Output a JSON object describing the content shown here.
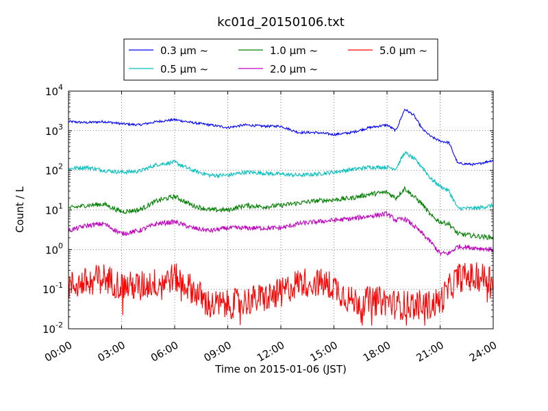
{
  "chart_data": {
    "type": "line",
    "title": "kc01d_20150106.txt",
    "xlabel": "Time on 2015-01-06 (JST)",
    "ylabel": "Count / L",
    "xlim": [
      "00:00",
      "24:00"
    ],
    "ylim": [
      0.01,
      10000
    ],
    "yscale": "log",
    "grid": true,
    "legend_position": "top-center",
    "x_ticks": [
      "00:00",
      "03:00",
      "06:00",
      "09:00",
      "12:00",
      "15:00",
      "18:00",
      "21:00",
      "24:00"
    ],
    "y_ticks": [
      {
        "base": "10",
        "exp": "-2",
        "value": 0.01
      },
      {
        "base": "10",
        "exp": "-1",
        "value": 0.1
      },
      {
        "base": "10",
        "exp": "0",
        "value": 1
      },
      {
        "base": "10",
        "exp": "1",
        "value": 10
      },
      {
        "base": "10",
        "exp": "2",
        "value": 100
      },
      {
        "base": "10",
        "exp": "3",
        "value": 1000
      },
      {
        "base": "10",
        "exp": "4",
        "value": 10000
      }
    ],
    "x": [
      "00:00",
      "01:00",
      "02:00",
      "03:00",
      "04:00",
      "05:00",
      "06:00",
      "07:00",
      "08:00",
      "09:00",
      "10:00",
      "11:00",
      "12:00",
      "13:00",
      "14:00",
      "15:00",
      "16:00",
      "17:00",
      "18:00",
      "18:30",
      "19:00",
      "19:30",
      "20:00",
      "20:30",
      "21:00",
      "21:30",
      "22:00",
      "23:00",
      "24:00"
    ],
    "series": [
      {
        "name": "0.3 μm ~",
        "color": "#0000ff",
        "noise": 0.03,
        "values": [
          1700,
          1600,
          1700,
          1500,
          1400,
          1700,
          1900,
          1600,
          1400,
          1200,
          1400,
          1300,
          1300,
          900,
          900,
          800,
          900,
          1200,
          1400,
          1000,
          3500,
          2500,
          1100,
          700,
          550,
          500,
          150,
          140,
          180
        ]
      },
      {
        "name": "0.5 μm ~",
        "color": "#00bfbf",
        "noise": 0.05,
        "values": [
          110,
          120,
          100,
          90,
          95,
          140,
          160,
          100,
          75,
          75,
          90,
          85,
          80,
          75,
          80,
          90,
          105,
          120,
          120,
          110,
          280,
          200,
          120,
          60,
          40,
          30,
          11,
          11,
          13
        ]
      },
      {
        "name": "1.0 μm ~",
        "color": "#008000",
        "noise": 0.06,
        "values": [
          11,
          13,
          14,
          9,
          10,
          17,
          22,
          13,
          10,
          10,
          13,
          12,
          13,
          15,
          17,
          18,
          20,
          25,
          28,
          20,
          35,
          22,
          14,
          7,
          5,
          4.5,
          2.5,
          2.2,
          2
        ]
      },
      {
        "name": "2.0 μm ~",
        "color": "#bf00bf",
        "noise": 0.06,
        "values": [
          3,
          4,
          4.5,
          2.5,
          3,
          4.5,
          5,
          3.5,
          3,
          3.5,
          3.5,
          3.5,
          3.5,
          4.5,
          5,
          5.5,
          6,
          7,
          8,
          5.5,
          6,
          4,
          2.5,
          1.5,
          0.8,
          0.8,
          1.2,
          1.1,
          1
        ]
      },
      {
        "name": "5.0 μm ~",
        "color": "#ff0000",
        "noise": 0.38,
        "values": [
          0.12,
          0.15,
          0.2,
          0.12,
          0.12,
          0.15,
          0.2,
          0.1,
          0.04,
          0.04,
          0.05,
          0.06,
          0.08,
          0.15,
          0.15,
          0.12,
          0.05,
          0.05,
          0.05,
          0.04,
          0.04,
          0.04,
          0.04,
          0.04,
          0.05,
          0.1,
          0.2,
          0.2,
          0.2
        ]
      }
    ],
    "legend_layout": [
      [
        "0.3 μm ~",
        "1.0 μm ~",
        "5.0 μm ~"
      ],
      [
        "0.5 μm ~",
        "2.0 μm ~"
      ]
    ]
  }
}
